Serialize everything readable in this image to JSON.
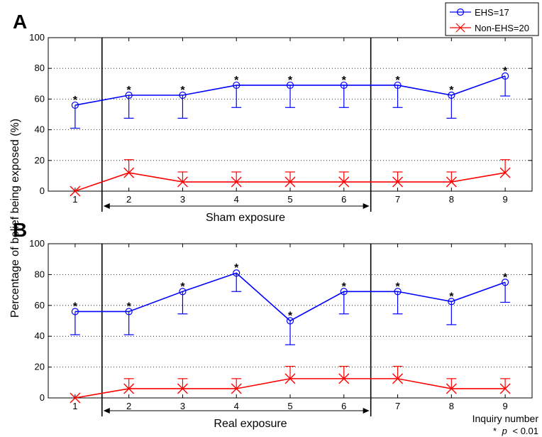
{
  "chart_data": {
    "type": "line",
    "ylabel": "Percentage of belief being exposed (%)",
    "xlabel": "Inquiry number",
    "footnote_star": "*",
    "footnote_p": "p",
    "footnote_rest": "< 0.01",
    "x": [
      1,
      2,
      3,
      4,
      5,
      6,
      7,
      8,
      9
    ],
    "ylim": [
      0,
      100
    ],
    "yticks": [
      0,
      20,
      40,
      60,
      80,
      100
    ],
    "grid": "horizontal dotted",
    "legend_position": "top-right",
    "colors": {
      "ehs": "#0000ff",
      "non_ehs": "#ff0000",
      "axis": "#000000"
    },
    "legend": [
      {
        "name": "EHS=17",
        "marker": "circle",
        "color": "#0000ff"
      },
      {
        "name": "Non-EHS=20",
        "marker": "x",
        "color": "#ff0000"
      }
    ],
    "panels": [
      {
        "letter": "A",
        "region_label": "Sham exposure",
        "region_bounds": [
          1.5,
          6.5
        ],
        "series": [
          {
            "name": "EHS=17",
            "values": [
              56,
              62.5,
              62.5,
              69,
              69,
              69,
              69,
              62.5,
              75
            ],
            "error_low": [
              41,
              47.5,
              47.5,
              54.5,
              54.5,
              54.5,
              54.5,
              47.5,
              62
            ],
            "significant": [
              true,
              true,
              true,
              true,
              true,
              true,
              true,
              true,
              true
            ]
          },
          {
            "name": "Non-EHS=20",
            "values": [
              0,
              12,
              6,
              6,
              6,
              6,
              6,
              6,
              12
            ],
            "error_high": [
              0,
              20.5,
              12.5,
              12.5,
              12.5,
              12.5,
              12.5,
              12.5,
              20.5
            ]
          }
        ]
      },
      {
        "letter": "B",
        "region_label": "Real exposure",
        "region_bounds": [
          1.5,
          6.5
        ],
        "series": [
          {
            "name": "EHS=17",
            "values": [
              56,
              56,
              69,
              81,
              50,
              69,
              69,
              62.5,
              75
            ],
            "error_low": [
              41,
              41,
              54.5,
              69,
              34.5,
              54.5,
              54.5,
              47.5,
              62
            ],
            "significant": [
              true,
              true,
              true,
              true,
              true,
              true,
              true,
              true,
              true
            ]
          },
          {
            "name": "Non-EHS=20",
            "values": [
              0,
              6,
              6,
              6,
              12.5,
              12.5,
              12.5,
              6,
              6
            ],
            "error_high": [
              0,
              12.5,
              12.5,
              12.5,
              20.5,
              20.5,
              20.5,
              12.5,
              12.5
            ]
          }
        ]
      }
    ]
  }
}
